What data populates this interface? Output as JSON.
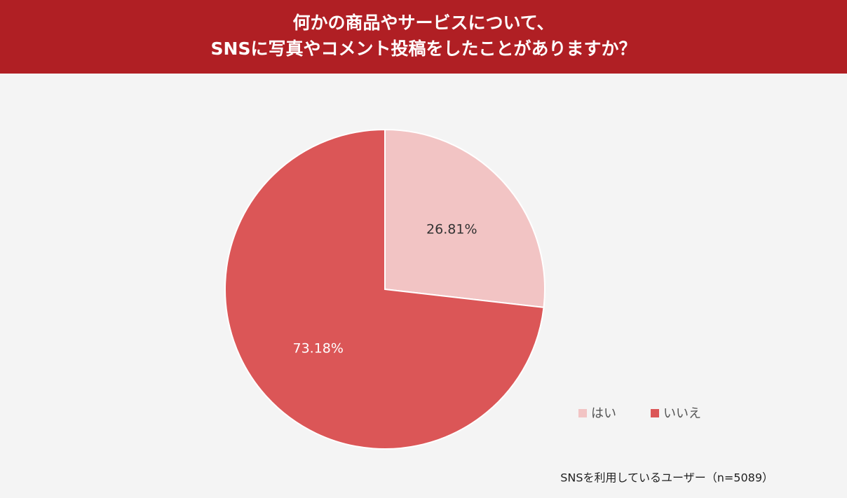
{
  "chart_data": {
    "type": "pie",
    "title": [
      "何かの商品やサービスについて、",
      "SNSに写真やコメント投稿をしたことがありますか？"
    ],
    "categories": [
      "はい",
      "いいえ"
    ],
    "values": [
      26.81,
      73.18
    ],
    "value_labels": [
      "26.81%",
      "73.18%"
    ],
    "colors": [
      "#f2c4c4",
      "#db5657"
    ],
    "legend": "lower right",
    "note": "SNSを利用しているユーザー（n=5089）"
  }
}
